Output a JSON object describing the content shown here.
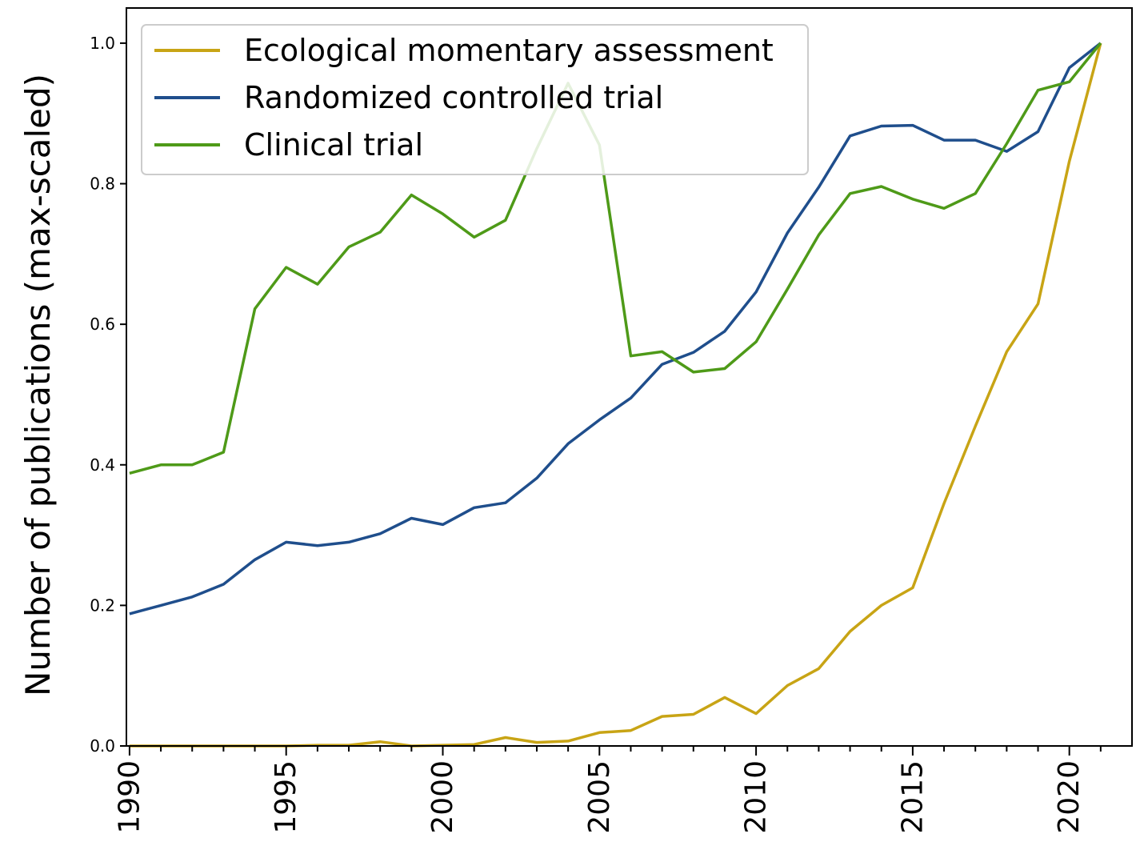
{
  "chart_data": {
    "type": "line",
    "title": "",
    "xlabel": "",
    "ylabel": "Number of publications (max-scaled)",
    "xlim": [
      1989.9,
      2022
    ],
    "ylim": [
      0.0,
      1.05
    ],
    "x_ticks": [
      "1990",
      "1995",
      "2000",
      "2005",
      "2010",
      "2015",
      "2020"
    ],
    "y_ticks": [
      "0.0",
      "0.2",
      "0.4",
      "0.6",
      "0.8",
      "1.0"
    ],
    "legend_position": "top-left",
    "grid": false,
    "x": [
      1990,
      1991,
      1992,
      1993,
      1994,
      1995,
      1996,
      1997,
      1998,
      1999,
      2000,
      2001,
      2002,
      2003,
      2004,
      2005,
      2006,
      2007,
      2008,
      2009,
      2010,
      2011,
      2012,
      2013,
      2014,
      2015,
      2016,
      2017,
      2018,
      2019,
      2020,
      2021
    ],
    "series": [
      {
        "name": "Ecological momentary assessment",
        "color": "#c8a415",
        "values": [
          0.0,
          0.0,
          0.0,
          0.0,
          0.0,
          0.0,
          0.001,
          0.001,
          0.006,
          0.0,
          0.001,
          0.002,
          0.012,
          0.005,
          0.007,
          0.019,
          0.022,
          0.042,
          0.045,
          0.069,
          0.046,
          0.086,
          0.11,
          0.163,
          0.2,
          0.225,
          0.345,
          0.455,
          0.561,
          0.629,
          0.832,
          1.0
        ]
      },
      {
        "name": "Randomized controlled trial",
        "color": "#1f4e8c",
        "values": [
          0.188,
          0.2,
          0.212,
          0.23,
          0.265,
          0.29,
          0.285,
          0.29,
          0.302,
          0.324,
          0.315,
          0.339,
          0.346,
          0.381,
          0.43,
          0.464,
          0.495,
          0.543,
          0.56,
          0.59,
          0.646,
          0.73,
          0.795,
          0.868,
          0.882,
          0.883,
          0.862,
          0.862,
          0.846,
          0.874,
          0.965,
          1.0
        ]
      },
      {
        "name": "Clinical trial",
        "color": "#4e9a18",
        "values": [
          0.388,
          0.4,
          0.4,
          0.418,
          0.622,
          0.681,
          0.657,
          0.71,
          0.731,
          0.784,
          0.757,
          0.724,
          0.748,
          0.85,
          0.943,
          0.855,
          0.555,
          0.561,
          0.532,
          0.537,
          0.575,
          0.65,
          0.727,
          0.786,
          0.796,
          0.778,
          0.765,
          0.786,
          0.857,
          0.933,
          0.945,
          1.0
        ]
      }
    ]
  }
}
